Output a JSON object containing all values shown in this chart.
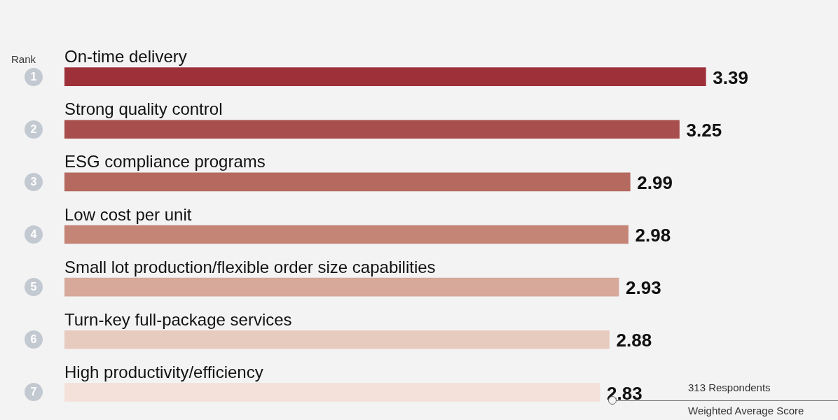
{
  "chart_data": {
    "type": "bar",
    "orientation": "horizontal",
    "categories": [
      "On-time delivery",
      "Strong quality control",
      "ESG compliance programs",
      "Low cost per unit",
      "Small lot production/flexible order size capabilities",
      "Turn-key full-package services",
      "High productivity/efficiency"
    ],
    "values": [
      3.39,
      3.25,
      2.99,
      2.98,
      2.93,
      2.88,
      2.83
    ],
    "colors": [
      "#9e3039",
      "#a84f4d",
      "#b5695f",
      "#c48577",
      "#d6a99b",
      "#e8cbbf",
      "#f3e1da"
    ],
    "data_labels": true,
    "annotations": [
      "Rank",
      "1",
      "2",
      "3",
      "4",
      "5",
      "6",
      "7",
      "313 Respondents",
      "Weighted Average Score"
    ]
  }
}
